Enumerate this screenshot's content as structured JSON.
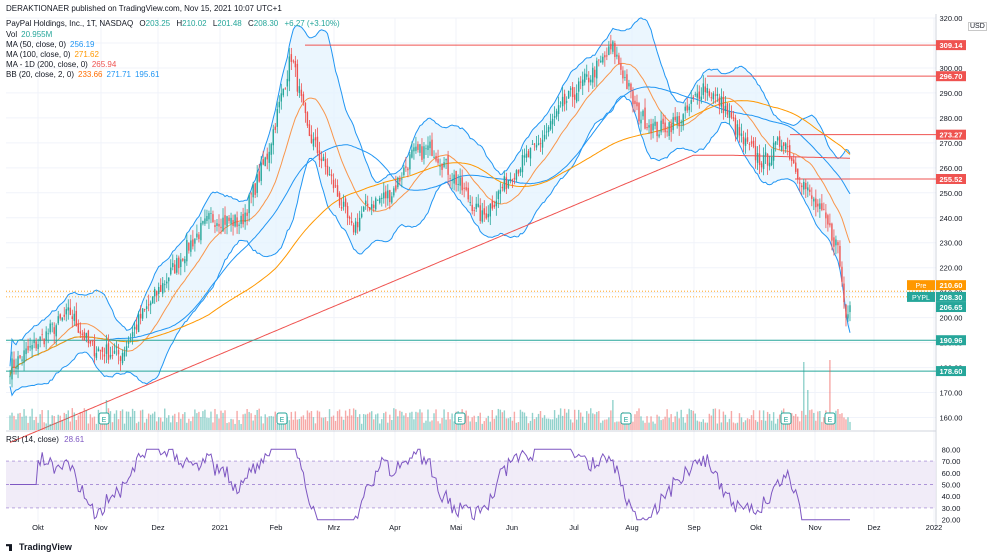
{
  "header": {
    "publisher_line": "DERAKTIONAER published on TradingView.com, Nov 15, 2021 10:07 UTC+1",
    "symbol_line": "PayPal Holdings, Inc., 1T, NASDAQ",
    "ohlc": {
      "o_label": "O",
      "o": "203.25",
      "h_label": "H",
      "h": "210.02",
      "l_label": "L",
      "l": "201.48",
      "c_label": "C",
      "c": "208.30",
      "change": "+6.27 (+3.10%)"
    }
  },
  "indicators": [
    {
      "label": "Vol",
      "values": [
        "20.955M"
      ],
      "colors": [
        "#26a69a"
      ]
    },
    {
      "label": "MA (50, close, 0)",
      "values": [
        "256.19"
      ],
      "colors": [
        "#2196f3"
      ]
    },
    {
      "label": "MA (100, close, 0)",
      "values": [
        "271.62"
      ],
      "colors": [
        "#ff9800"
      ]
    },
    {
      "label": "MA - 1D (200, close, 0)",
      "values": [
        "265.94"
      ],
      "colors": [
        "#ef5350"
      ]
    },
    {
      "label": "BB (20, close, 2, 0)",
      "values": [
        "233.66",
        "271.71",
        "195.61"
      ],
      "colors": [
        "#ff6d00",
        "#2196f3",
        "#2196f3"
      ]
    }
  ],
  "rsi_label": {
    "label": "RSI (14, close)",
    "value": "28.61"
  },
  "footer": {
    "brand": "TradingView"
  },
  "currency": "USD",
  "colors": {
    "up": "#26a69a",
    "down": "#ef5350",
    "bb": "#2196f3",
    "bb_fill": "#e3f2fd",
    "ma50": "#2196f3",
    "ma100": "#ff9800",
    "ma200": "#ef5350",
    "bb_basis": "#ff6d00",
    "rsi": "#7e57c2",
    "rsi_band": "#ede7f6",
    "level_red": "#ef5350",
    "level_green": "#26a69a"
  },
  "chart_data": {
    "type": "candlestick",
    "y_ticks": [
      160,
      170,
      180,
      190,
      200,
      210,
      220,
      230,
      240,
      250,
      260,
      270,
      280,
      290,
      300,
      310,
      320
    ],
    "ylim": [
      155,
      320
    ],
    "x_labels": [
      "Okt",
      "Nov",
      "Dez",
      "2021",
      "Feb",
      "Mrz",
      "Apr",
      "Mai",
      "Jun",
      "Jul",
      "Aug",
      "Sep",
      "Okt",
      "Nov",
      "Dez",
      "2022"
    ],
    "key_points": [
      {
        "d": 0,
        "p": 180
      },
      {
        "d": 30,
        "p": 202
      },
      {
        "d": 40,
        "p": 188
      },
      {
        "d": 55,
        "p": 185
      },
      {
        "d": 65,
        "p": 200
      },
      {
        "d": 90,
        "p": 230
      },
      {
        "d": 100,
        "p": 240
      },
      {
        "d": 115,
        "p": 238
      },
      {
        "d": 128,
        "p": 265
      },
      {
        "d": 140,
        "p": 305
      },
      {
        "d": 148,
        "p": 275
      },
      {
        "d": 160,
        "p": 255
      },
      {
        "d": 170,
        "p": 235
      },
      {
        "d": 178,
        "p": 245
      },
      {
        "d": 190,
        "p": 250
      },
      {
        "d": 200,
        "p": 265
      },
      {
        "d": 210,
        "p": 268
      },
      {
        "d": 222,
        "p": 255
      },
      {
        "d": 235,
        "p": 240
      },
      {
        "d": 250,
        "p": 258
      },
      {
        "d": 262,
        "p": 268
      },
      {
        "d": 275,
        "p": 285
      },
      {
        "d": 290,
        "p": 298
      },
      {
        "d": 300,
        "p": 308
      },
      {
        "d": 305,
        "p": 298
      },
      {
        "d": 312,
        "p": 282
      },
      {
        "d": 322,
        "p": 275
      },
      {
        "d": 335,
        "p": 280
      },
      {
        "d": 345,
        "p": 293
      },
      {
        "d": 355,
        "p": 285
      },
      {
        "d": 365,
        "p": 270
      },
      {
        "d": 375,
        "p": 262
      },
      {
        "d": 385,
        "p": 272
      },
      {
        "d": 390,
        "p": 262
      },
      {
        "d": 397,
        "p": 250
      },
      {
        "d": 405,
        "p": 240
      },
      {
        "d": 412,
        "p": 228
      },
      {
        "d": 416,
        "p": 200
      },
      {
        "d": 418,
        "p": 208
      }
    ],
    "price_levels": [
      {
        "label": "309.14",
        "value": 309.14,
        "color": "#ef5350"
      },
      {
        "label": "296.70",
        "value": 296.7,
        "color": "#ef5350"
      },
      {
        "label": "273.27",
        "value": 273.27,
        "color": "#ef5350"
      },
      {
        "label": "255.52",
        "value": 255.52,
        "color": "#ef5350"
      },
      {
        "label": "190.96",
        "value": 190.96,
        "color": "#26a69a"
      },
      {
        "label": "178.60",
        "value": 178.6,
        "color": "#26a69a"
      }
    ],
    "price_tags": [
      {
        "label": "Pre",
        "value": "210.60",
        "price": 210.6,
        "color": "#ff9800"
      },
      {
        "label": "PYPL",
        "value": "208.30",
        "price": 208.3,
        "color": "#26a69a"
      },
      {
        "label": "",
        "value": "206.65",
        "price": 206.65,
        "color": "#26a69a"
      }
    ],
    "earnings_marks": [
      "E",
      "E",
      "E",
      "E",
      "E",
      "E"
    ],
    "rsi_ticks": [
      20,
      30,
      40,
      50,
      60,
      70,
      80
    ],
    "rsi_ylim": [
      18,
      82
    ],
    "rsi_bands": [
      30,
      70
    ]
  }
}
